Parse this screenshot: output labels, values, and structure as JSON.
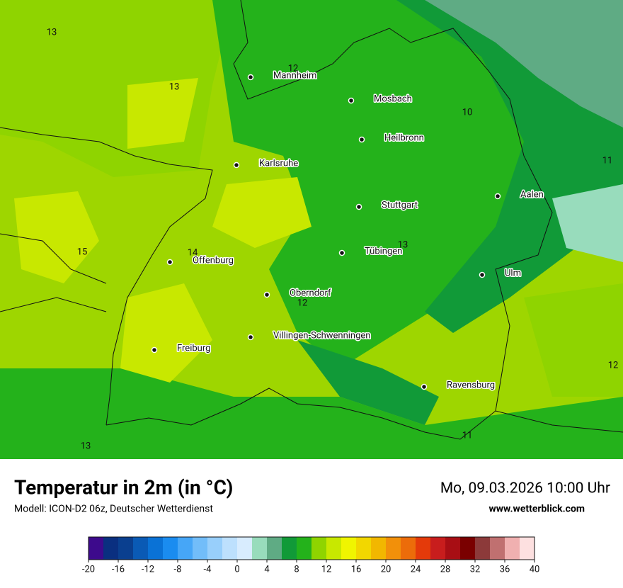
{
  "map": {
    "title": "Temperatur in 2m (in °C)",
    "subtitle": "Modell: ICON-D2 06z, Deutscher Wetterdienst",
    "datetime": "Mo, 09.03.2026 10:00 Uhr",
    "website": "www.wetterblick.com",
    "cities": [
      "Mannheim",
      "Mosbach",
      "Heilbronn",
      "Karlsruhe",
      "Stuttgart",
      "Aalen",
      "Tübingen",
      "Ulm",
      "Offenburg",
      "Oberndorf",
      "Villingen-Schwenningen",
      "Freiburg",
      "Ravensburg"
    ],
    "contour_labels": [
      13,
      13,
      12,
      10,
      11,
      15,
      14,
      13,
      12,
      12,
      11,
      13
    ],
    "legend": {
      "min": -20,
      "max": 40,
      "ticks": [
        -20,
        -16,
        -12,
        -8,
        -4,
        0,
        4,
        8,
        12,
        16,
        20,
        24,
        28,
        32,
        36,
        40
      ],
      "colors": [
        "#3d0a8c",
        "#0a2f80",
        "#0a3f8f",
        "#0a5ab5",
        "#0a72d6",
        "#1a8cf0",
        "#46a6f7",
        "#72bdf9",
        "#98cffb",
        "#bde0fd",
        "#d8ecfe",
        "#98dcbc",
        "#5fab84",
        "#119a38",
        "#24b21b",
        "#8fd400",
        "#c8e800",
        "#f0f500",
        "#f2d700",
        "#f2b700",
        "#f2900a",
        "#ec6c0a",
        "#e43a0a",
        "#c81d1d",
        "#a80e14",
        "#7a0000",
        "#8c3a3a",
        "#c07070",
        "#f0b0b0",
        "#fde0e0"
      ]
    }
  }
}
